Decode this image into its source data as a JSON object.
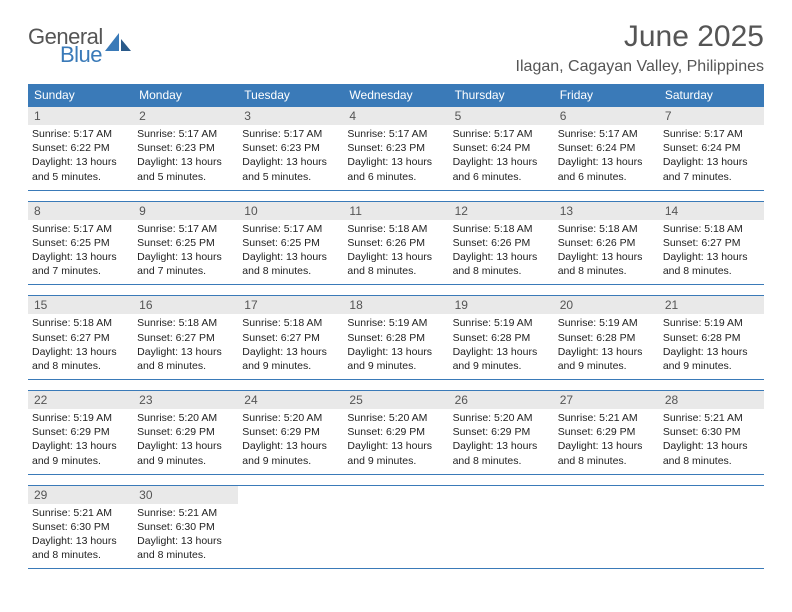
{
  "logo": {
    "general": "General",
    "blue": "Blue"
  },
  "title": "June 2025",
  "location": "Ilagan, Cagayan Valley, Philippines",
  "dayHeaders": [
    "Sunday",
    "Monday",
    "Tuesday",
    "Wednesday",
    "Thursday",
    "Friday",
    "Saturday"
  ],
  "colors": {
    "header_bg": "#3a7ab8",
    "header_text": "#ffffff",
    "daynum_bg": "#e9e9e9",
    "text": "#222222",
    "title_text": "#555555"
  },
  "weeks": [
    [
      {
        "n": "1",
        "sunrise": "Sunrise: 5:17 AM",
        "sunset": "Sunset: 6:22 PM",
        "daylight": "Daylight: 13 hours and 5 minutes."
      },
      {
        "n": "2",
        "sunrise": "Sunrise: 5:17 AM",
        "sunset": "Sunset: 6:23 PM",
        "daylight": "Daylight: 13 hours and 5 minutes."
      },
      {
        "n": "3",
        "sunrise": "Sunrise: 5:17 AM",
        "sunset": "Sunset: 6:23 PM",
        "daylight": "Daylight: 13 hours and 5 minutes."
      },
      {
        "n": "4",
        "sunrise": "Sunrise: 5:17 AM",
        "sunset": "Sunset: 6:23 PM",
        "daylight": "Daylight: 13 hours and 6 minutes."
      },
      {
        "n": "5",
        "sunrise": "Sunrise: 5:17 AM",
        "sunset": "Sunset: 6:24 PM",
        "daylight": "Daylight: 13 hours and 6 minutes."
      },
      {
        "n": "6",
        "sunrise": "Sunrise: 5:17 AM",
        "sunset": "Sunset: 6:24 PM",
        "daylight": "Daylight: 13 hours and 6 minutes."
      },
      {
        "n": "7",
        "sunrise": "Sunrise: 5:17 AM",
        "sunset": "Sunset: 6:24 PM",
        "daylight": "Daylight: 13 hours and 7 minutes."
      }
    ],
    [
      {
        "n": "8",
        "sunrise": "Sunrise: 5:17 AM",
        "sunset": "Sunset: 6:25 PM",
        "daylight": "Daylight: 13 hours and 7 minutes."
      },
      {
        "n": "9",
        "sunrise": "Sunrise: 5:17 AM",
        "sunset": "Sunset: 6:25 PM",
        "daylight": "Daylight: 13 hours and 7 minutes."
      },
      {
        "n": "10",
        "sunrise": "Sunrise: 5:17 AM",
        "sunset": "Sunset: 6:25 PM",
        "daylight": "Daylight: 13 hours and 8 minutes."
      },
      {
        "n": "11",
        "sunrise": "Sunrise: 5:18 AM",
        "sunset": "Sunset: 6:26 PM",
        "daylight": "Daylight: 13 hours and 8 minutes."
      },
      {
        "n": "12",
        "sunrise": "Sunrise: 5:18 AM",
        "sunset": "Sunset: 6:26 PM",
        "daylight": "Daylight: 13 hours and 8 minutes."
      },
      {
        "n": "13",
        "sunrise": "Sunrise: 5:18 AM",
        "sunset": "Sunset: 6:26 PM",
        "daylight": "Daylight: 13 hours and 8 minutes."
      },
      {
        "n": "14",
        "sunrise": "Sunrise: 5:18 AM",
        "sunset": "Sunset: 6:27 PM",
        "daylight": "Daylight: 13 hours and 8 minutes."
      }
    ],
    [
      {
        "n": "15",
        "sunrise": "Sunrise: 5:18 AM",
        "sunset": "Sunset: 6:27 PM",
        "daylight": "Daylight: 13 hours and 8 minutes."
      },
      {
        "n": "16",
        "sunrise": "Sunrise: 5:18 AM",
        "sunset": "Sunset: 6:27 PM",
        "daylight": "Daylight: 13 hours and 8 minutes."
      },
      {
        "n": "17",
        "sunrise": "Sunrise: 5:18 AM",
        "sunset": "Sunset: 6:27 PM",
        "daylight": "Daylight: 13 hours and 9 minutes."
      },
      {
        "n": "18",
        "sunrise": "Sunrise: 5:19 AM",
        "sunset": "Sunset: 6:28 PM",
        "daylight": "Daylight: 13 hours and 9 minutes."
      },
      {
        "n": "19",
        "sunrise": "Sunrise: 5:19 AM",
        "sunset": "Sunset: 6:28 PM",
        "daylight": "Daylight: 13 hours and 9 minutes."
      },
      {
        "n": "20",
        "sunrise": "Sunrise: 5:19 AM",
        "sunset": "Sunset: 6:28 PM",
        "daylight": "Daylight: 13 hours and 9 minutes."
      },
      {
        "n": "21",
        "sunrise": "Sunrise: 5:19 AM",
        "sunset": "Sunset: 6:28 PM",
        "daylight": "Daylight: 13 hours and 9 minutes."
      }
    ],
    [
      {
        "n": "22",
        "sunrise": "Sunrise: 5:19 AM",
        "sunset": "Sunset: 6:29 PM",
        "daylight": "Daylight: 13 hours and 9 minutes."
      },
      {
        "n": "23",
        "sunrise": "Sunrise: 5:20 AM",
        "sunset": "Sunset: 6:29 PM",
        "daylight": "Daylight: 13 hours and 9 minutes."
      },
      {
        "n": "24",
        "sunrise": "Sunrise: 5:20 AM",
        "sunset": "Sunset: 6:29 PM",
        "daylight": "Daylight: 13 hours and 9 minutes."
      },
      {
        "n": "25",
        "sunrise": "Sunrise: 5:20 AM",
        "sunset": "Sunset: 6:29 PM",
        "daylight": "Daylight: 13 hours and 9 minutes."
      },
      {
        "n": "26",
        "sunrise": "Sunrise: 5:20 AM",
        "sunset": "Sunset: 6:29 PM",
        "daylight": "Daylight: 13 hours and 8 minutes."
      },
      {
        "n": "27",
        "sunrise": "Sunrise: 5:21 AM",
        "sunset": "Sunset: 6:29 PM",
        "daylight": "Daylight: 13 hours and 8 minutes."
      },
      {
        "n": "28",
        "sunrise": "Sunrise: 5:21 AM",
        "sunset": "Sunset: 6:30 PM",
        "daylight": "Daylight: 13 hours and 8 minutes."
      }
    ],
    [
      {
        "n": "29",
        "sunrise": "Sunrise: 5:21 AM",
        "sunset": "Sunset: 6:30 PM",
        "daylight": "Daylight: 13 hours and 8 minutes."
      },
      {
        "n": "30",
        "sunrise": "Sunrise: 5:21 AM",
        "sunset": "Sunset: 6:30 PM",
        "daylight": "Daylight: 13 hours and 8 minutes."
      },
      null,
      null,
      null,
      null,
      null
    ]
  ]
}
